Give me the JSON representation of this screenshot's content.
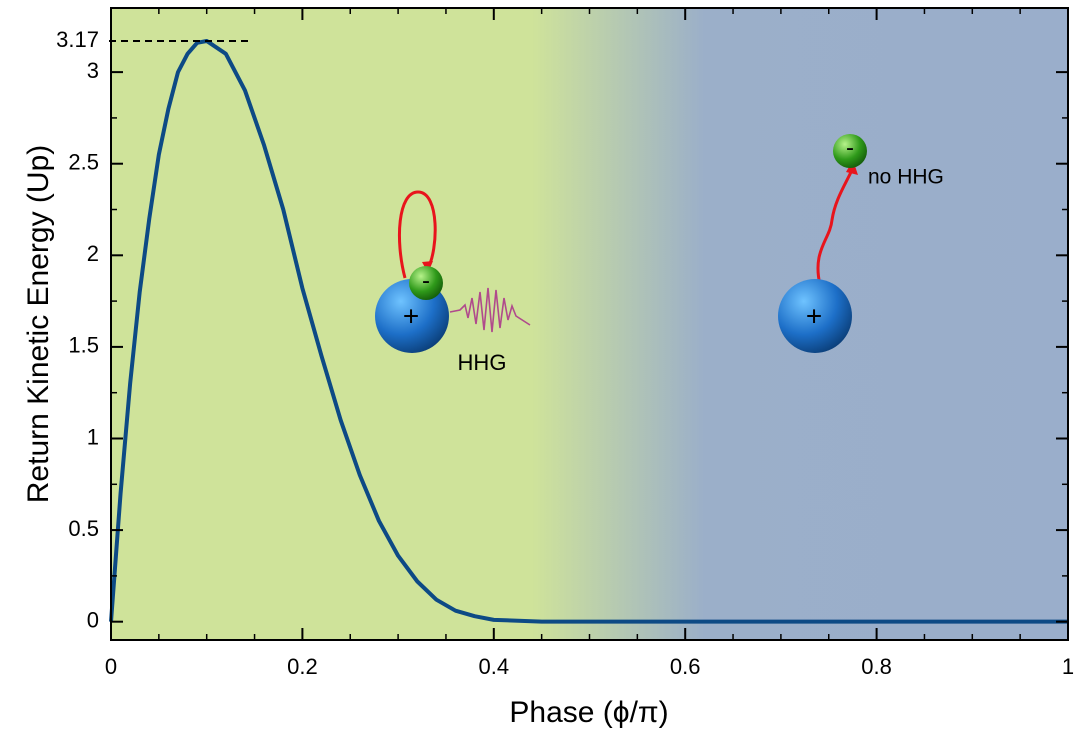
{
  "chart_data": {
    "type": "line",
    "xlabel": "Phase (ϕ/π)",
    "ylabel": "Return Kinetic Energy (Up)",
    "x": [
      0,
      0.01,
      0.02,
      0.03,
      0.04,
      0.05,
      0.06,
      0.07,
      0.08,
      0.09,
      0.1,
      0.12,
      0.14,
      0.16,
      0.18,
      0.2,
      0.22,
      0.24,
      0.26,
      0.28,
      0.3,
      0.32,
      0.34,
      0.36,
      0.38,
      0.4,
      0.45,
      0.5,
      0.6,
      0.7,
      0.8,
      0.9,
      1
    ],
    "series": [
      {
        "name": "Return kinetic energy",
        "color": "#0d4a85",
        "values": [
          0,
          0.7,
          1.3,
          1.8,
          2.2,
          2.55,
          2.8,
          3.0,
          3.1,
          3.16,
          3.17,
          3.1,
          2.9,
          2.6,
          2.25,
          1.82,
          1.45,
          1.1,
          0.8,
          0.55,
          0.36,
          0.22,
          0.12,
          0.06,
          0.03,
          0.01,
          0,
          0,
          0,
          0,
          0,
          0,
          0
        ]
      }
    ],
    "xlim": [
      0,
      1
    ],
    "ylim": [
      -0.1,
      3.35
    ],
    "xticks": [
      0,
      0.2,
      0.4,
      0.6,
      0.8,
      1
    ],
    "yticks": [
      0,
      0.5,
      1,
      1.5,
      2,
      2.5,
      3
    ],
    "peak": 3.17,
    "labels": {
      "hhg": "HHG",
      "no_hhg": "no HHG",
      "ion": "+",
      "electron": "-"
    }
  }
}
